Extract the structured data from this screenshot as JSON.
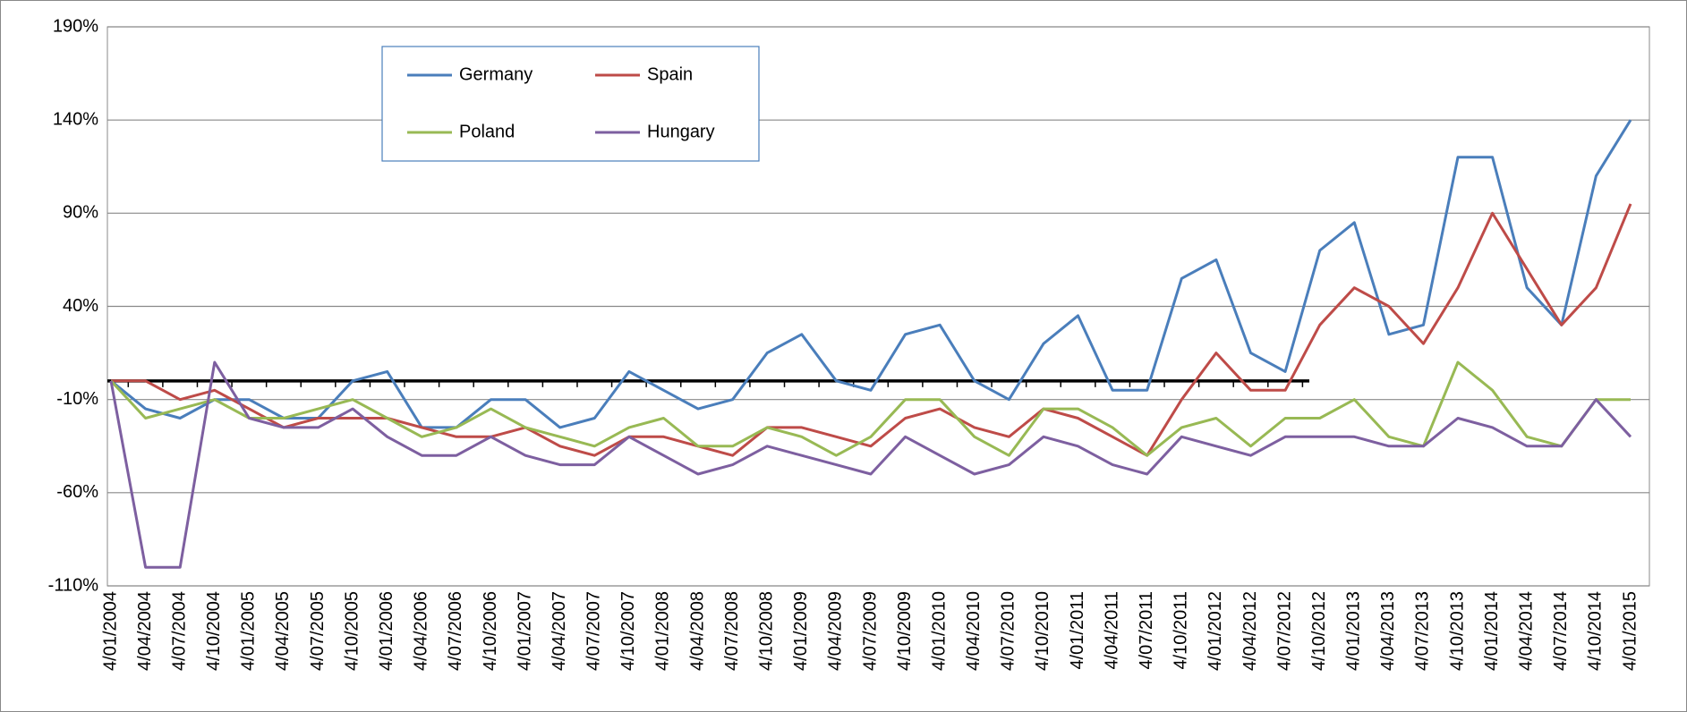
{
  "chart_data": {
    "type": "line",
    "categories": [
      "4/01/2004",
      "4/04/2004",
      "4/07/2004",
      "4/10/2004",
      "4/01/2005",
      "4/04/2005",
      "4/07/2005",
      "4/10/2005",
      "4/01/2006",
      "4/04/2006",
      "4/07/2006",
      "4/10/2006",
      "4/01/2007",
      "4/04/2007",
      "4/07/2007",
      "4/10/2007",
      "4/01/2008",
      "4/04/2008",
      "4/07/2008",
      "4/10/2008",
      "4/01/2009",
      "4/04/2009",
      "4/07/2009",
      "4/10/2009",
      "4/01/2010",
      "4/04/2010",
      "4/07/2010",
      "4/10/2010",
      "4/01/2011",
      "4/04/2011",
      "4/07/2011",
      "4/10/2011",
      "4/01/2012",
      "4/04/2012",
      "4/07/2012",
      "4/10/2012",
      "4/01/2013",
      "4/04/2013",
      "4/07/2013",
      "4/10/2013",
      "4/01/2014",
      "4/04/2014",
      "4/07/2014",
      "4/10/2014",
      "4/01/2015"
    ],
    "series": [
      {
        "name": "Germany",
        "color": "#4a7ebb",
        "values": [
          0,
          -15,
          -20,
          -10,
          -10,
          -20,
          -20,
          0,
          5,
          -25,
          -25,
          -10,
          -10,
          -25,
          -20,
          5,
          -5,
          -15,
          -10,
          15,
          25,
          0,
          -5,
          25,
          30,
          0,
          -10,
          20,
          35,
          -5,
          -5,
          55,
          65,
          15,
          5,
          70,
          85,
          25,
          30,
          120,
          120,
          50,
          30,
          110,
          140
        ]
      },
      {
        "name": "Spain",
        "color": "#be4b48",
        "values": [
          0,
          0,
          -10,
          -5,
          -15,
          -25,
          -20,
          -20,
          -20,
          -25,
          -30,
          -30,
          -25,
          -35,
          -40,
          -30,
          -30,
          -35,
          -40,
          -25,
          -25,
          -30,
          -35,
          -20,
          -15,
          -25,
          -30,
          -15,
          -20,
          -30,
          -40,
          -10,
          15,
          -5,
          -5,
          30,
          50,
          40,
          20,
          50,
          90,
          60,
          30,
          50,
          95
        ]
      },
      {
        "name": "Poland",
        "color": "#98b954",
        "values": [
          0,
          -20,
          -15,
          -10,
          -20,
          -20,
          -15,
          -10,
          -20,
          -30,
          -25,
          -15,
          -25,
          -30,
          -35,
          -25,
          -20,
          -35,
          -35,
          -25,
          -30,
          -40,
          -30,
          -10,
          -10,
          -30,
          -40,
          -15,
          -15,
          -25,
          -40,
          -25,
          -20,
          -35,
          -20,
          -20,
          -10,
          -30,
          -35,
          10,
          -5,
          -30,
          -35,
          -10,
          -10
        ]
      },
      {
        "name": "Hungary",
        "color": "#7d5fa0",
        "values": [
          0,
          -100,
          -100,
          10,
          -20,
          -25,
          -25,
          -15,
          -30,
          -40,
          -40,
          -30,
          -40,
          -45,
          -45,
          -30,
          -40,
          -50,
          -45,
          -35,
          -40,
          -45,
          -50,
          -30,
          -40,
          -50,
          -45,
          -30,
          -35,
          -45,
          -50,
          -30,
          -35,
          -40,
          -30,
          -30,
          -30,
          -35,
          -35,
          -20,
          -25,
          -35,
          -35,
          -10,
          -30
        ]
      }
    ],
    "ylim": [
      -110,
      190
    ],
    "yticks": [
      {
        "value": -110,
        "label": "-110%"
      },
      {
        "value": -60,
        "label": "-60%"
      },
      {
        "value": -10,
        "label": "-10%"
      },
      {
        "value": 40,
        "label": "40%"
      },
      {
        "value": 90,
        "label": "90%"
      },
      {
        "value": 140,
        "label": "140%"
      },
      {
        "value": 190,
        "label": "190%"
      }
    ],
    "grid": true
  }
}
